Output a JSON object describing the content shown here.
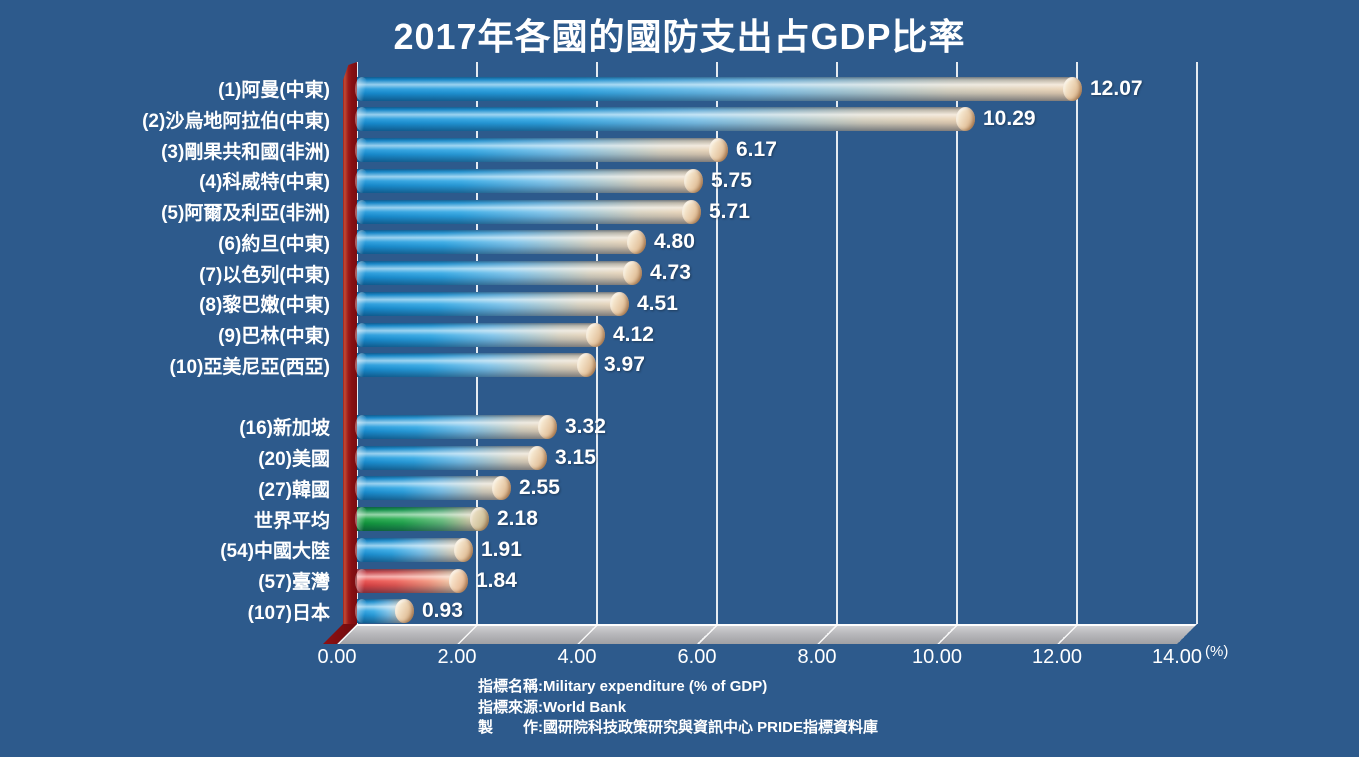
{
  "chart_data": {
    "type": "bar",
    "orientation": "horizontal",
    "title": "2017年各國的國防支出占GDP比率",
    "xlabel": "(%)",
    "ylabel": "",
    "xlim": [
      0,
      14
    ],
    "grid": true,
    "legend": false,
    "xticks": [
      "0.00",
      "2.00",
      "4.00",
      "6.00",
      "8.00",
      "10.00",
      "12.00",
      "14.00"
    ],
    "categories": [
      "(1)阿曼(中東)",
      "(2)沙烏地阿拉伯(中東)",
      "(3)剛果共和國(非洲)",
      "(4)科威特(中東)",
      "(5)阿爾及利亞(非洲)",
      "(6)約旦(中東)",
      "(7)以色列(中東)",
      "(8)黎巴嫩(中東)",
      "(9)巴林(中東)",
      "(10)亞美尼亞(西亞)",
      "(16)新加坡",
      "(20)美國",
      "(27)韓國",
      "世界平均",
      "(54)中國大陸",
      "(57)臺灣",
      "(107)日本"
    ],
    "values": [
      12.07,
      10.29,
      6.17,
      5.75,
      5.71,
      4.8,
      4.73,
      4.51,
      4.12,
      3.97,
      3.32,
      3.15,
      2.55,
      2.18,
      1.91,
      1.84,
      0.93
    ],
    "value_labels": [
      "12.07",
      "10.29",
      "6.17",
      "5.75",
      "5.71",
      "4.80",
      "4.73",
      "4.51",
      "4.12",
      "3.97",
      "3.32",
      "3.15",
      "2.55",
      "2.18",
      "1.91",
      "1.84",
      "0.93"
    ],
    "bar_colors": [
      "blue",
      "blue",
      "blue",
      "blue",
      "blue",
      "blue",
      "blue",
      "blue",
      "blue",
      "blue",
      "blue",
      "blue",
      "blue",
      "green",
      "blue",
      "red",
      "blue"
    ],
    "gap_after_index": 9,
    "palette": {
      "blue": "#1e9fe2",
      "green": "#16a33c",
      "red": "#ea4b4b",
      "bar_end": "#ecd2b2",
      "wall": "#8e1113",
      "floor": "#b5b5b8",
      "background": "#2d5a8c",
      "gridline": "#ffffff",
      "text": "#ffffff"
    }
  },
  "footer": {
    "lines": [
      "指標名稱:Military expenditure (% of GDP)",
      "指標來源:World Bank",
      "製　　作:國研院科技政策研究與資訊中心 PRIDE指標資料庫"
    ]
  }
}
